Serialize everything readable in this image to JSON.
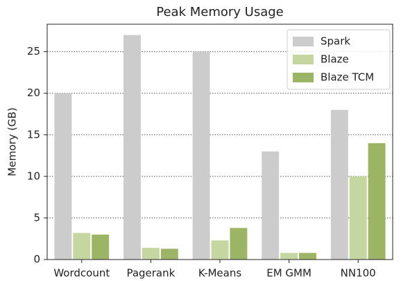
{
  "chart_data": {
    "type": "bar",
    "title": "Peak Memory Usage",
    "y_label": "Memory (GB)",
    "categories": [
      "Wordcount",
      "Pagerank",
      "K-Means",
      "EM GMM",
      "NN100"
    ],
    "series": [
      {
        "name": "Spark",
        "color": "#cccccc",
        "values": [
          20,
          27,
          25,
          13,
          18
        ]
      },
      {
        "name": "Blaze",
        "color": "#c5d6a0",
        "values": [
          3.2,
          1.4,
          2.3,
          0.8,
          10
        ]
      },
      {
        "name": "Blaze TCM",
        "color": "#9bb565",
        "values": [
          3.0,
          1.3,
          3.8,
          0.8,
          14
        ]
      }
    ],
    "ylim": [
      0,
      28.3
    ],
    "yticks": [
      0,
      5,
      10,
      15,
      20,
      25
    ],
    "grid": true,
    "legend": "upper right"
  }
}
